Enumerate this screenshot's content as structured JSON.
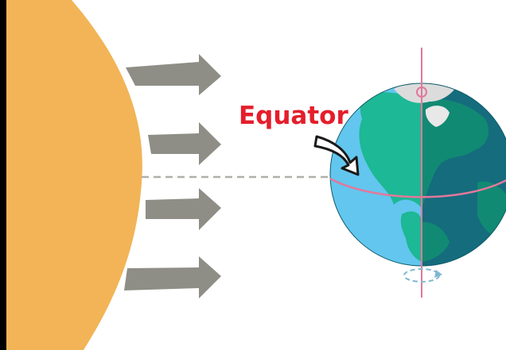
{
  "diagram": {
    "equator_label": "Equator",
    "colors": {
      "sun": "#f2b456",
      "arrows": "#8e8e86",
      "label": "#e41e2b",
      "ocean_light": "#62c6ee",
      "ocean_dark": "#146c7d",
      "land_light": "#1db895",
      "land_dark": "#118a73",
      "ice": "#dcdcdc",
      "axis": "#e2789a",
      "equator_line": "#e2789a",
      "sun_ray_line": "#b0b0a8"
    },
    "icons": {
      "sun": "sun-shape",
      "rays": "arrow-right-icon",
      "pointer": "curved-arrow-icon",
      "rotation": "rotation-arrow-icon"
    }
  }
}
